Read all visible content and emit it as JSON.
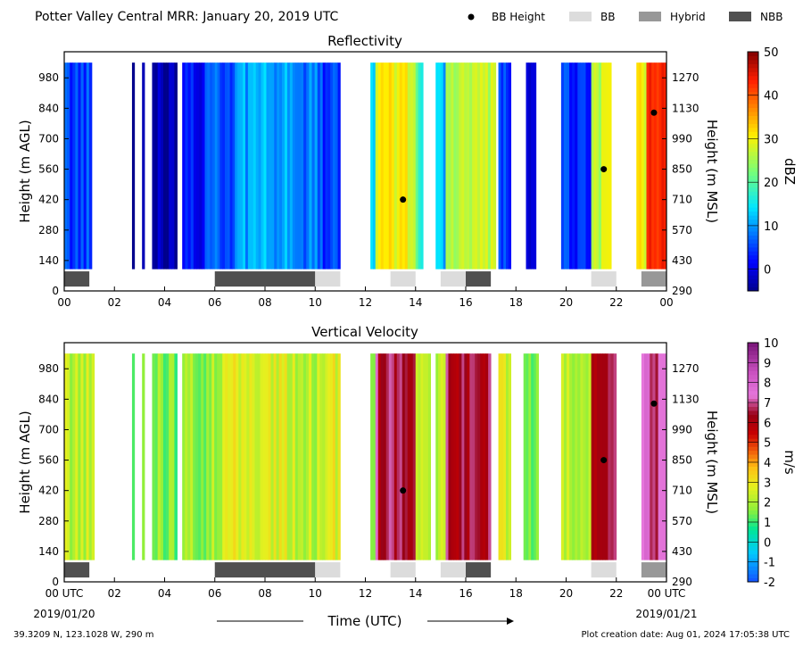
{
  "page": {
    "title": "Potter Valley Central MRR:  January 20, 2019 UTC",
    "legend": [
      {
        "label": "BB Height",
        "kind": "dot",
        "color": "#000000"
      },
      {
        "label": "BB",
        "kind": "box",
        "color": "#dcdcdc"
      },
      {
        "label": "Hybrid",
        "kind": "box",
        "color": "#989898"
      },
      {
        "label": "NBB",
        "kind": "box",
        "color": "#505050"
      }
    ],
    "xlabel": "Time (UTC)",
    "start_date": "2019/01/20",
    "end_date": "2019/01/21",
    "location": "39.3209 N, 123.1028 W, 290 m",
    "creation": "Plot creation date: Aug 01, 2024 17:05:38 UTC"
  },
  "chart_data": [
    {
      "type": "heatmap",
      "title": "Reflectivity",
      "ylabel": "Height (m AGL)",
      "y2label": "Height (m MSL)",
      "colorbar_label": "dBZ",
      "colorbar_range": [
        -5,
        50
      ],
      "colorbar_ticks": [
        "0",
        "10",
        "20",
        "30",
        "40",
        "50"
      ],
      "colorbar_tick_values": [
        0,
        10,
        20,
        30,
        40,
        50
      ],
      "colorscale": "jet",
      "x_range": [
        0,
        24
      ],
      "x_ticks": [
        "00",
        "02",
        "04",
        "06",
        "08",
        "10",
        "12",
        "14",
        "16",
        "18",
        "20",
        "22",
        "00"
      ],
      "y_range": [
        0,
        1100
      ],
      "y_ticks": [
        "0",
        "140",
        "280",
        "420",
        "560",
        "700",
        "840",
        "980"
      ],
      "y_tick_values": [
        0,
        140,
        280,
        420,
        560,
        700,
        840,
        980
      ],
      "y2_ticks": [
        "290",
        "430",
        "570",
        "710",
        "850",
        "990",
        "1130",
        "1270"
      ],
      "data_height_range": [
        100,
        1050
      ],
      "columns": [
        {
          "start": 0.0,
          "end": 1.1,
          "value": 5
        },
        {
          "start": 2.7,
          "end": 2.8,
          "value": -2
        },
        {
          "start": 3.1,
          "end": 3.2,
          "value": -3
        },
        {
          "start": 3.5,
          "end": 4.5,
          "value": -3
        },
        {
          "start": 4.7,
          "end": 5.6,
          "value": 2
        },
        {
          "start": 5.6,
          "end": 6.3,
          "value": 6
        },
        {
          "start": 6.3,
          "end": 6.8,
          "value": 6
        },
        {
          "start": 6.8,
          "end": 9.2,
          "value": 11
        },
        {
          "start": 9.2,
          "end": 10.2,
          "value": 8
        },
        {
          "start": 10.2,
          "end": 11.0,
          "value": 5
        },
        {
          "start": 12.2,
          "end": 12.4,
          "value": 12
        },
        {
          "start": 12.4,
          "end": 14.0,
          "value": 30
        },
        {
          "start": 14.0,
          "end": 14.3,
          "value": 18
        },
        {
          "start": 14.8,
          "end": 15.2,
          "value": 12
        },
        {
          "start": 15.2,
          "end": 17.2,
          "value": 26
        },
        {
          "start": 17.3,
          "end": 17.8,
          "value": 4
        },
        {
          "start": 18.4,
          "end": 18.8,
          "value": 0
        },
        {
          "start": 19.8,
          "end": 21.0,
          "value": 4
        },
        {
          "start": 21.0,
          "end": 21.8,
          "value": 27
        },
        {
          "start": 22.8,
          "end": 23.2,
          "value": 30
        },
        {
          "start": 23.2,
          "end": 24.0,
          "value": 42
        }
      ],
      "bb_height_points": [
        {
          "x": 13.5,
          "y": 420
        },
        {
          "x": 21.5,
          "y": 560
        },
        {
          "x": 23.5,
          "y": 820
        }
      ]
    },
    {
      "type": "heatmap",
      "title": "Vertical Velocity",
      "ylabel": "Height (m AGL)",
      "y2label": "Height (m MSL)",
      "colorbar_label": "m/s",
      "colorbar_range": [
        -2,
        10
      ],
      "colorbar_ticks": [
        "-2",
        "-1",
        "0",
        "1",
        "2",
        "3",
        "4",
        "5",
        "6",
        "7",
        "8",
        "9",
        "10"
      ],
      "colorbar_tick_values": [
        -2,
        -1,
        0,
        1,
        2,
        3,
        4,
        5,
        6,
        7,
        8,
        9,
        10
      ],
      "colorscale": "velocity",
      "x_range": [
        0,
        24
      ],
      "x_ticks": [
        "00 UTC",
        "02",
        "04",
        "06",
        "08",
        "10",
        "12",
        "14",
        "16",
        "18",
        "20",
        "22",
        "00 UTC"
      ],
      "y_range": [
        0,
        1100
      ],
      "y_ticks": [
        "0",
        "140",
        "280",
        "420",
        "560",
        "700",
        "840",
        "980"
      ],
      "y_tick_values": [
        0,
        140,
        280,
        420,
        560,
        700,
        840,
        980
      ],
      "y2_ticks": [
        "290",
        "430",
        "570",
        "710",
        "850",
        "990",
        "1130",
        "1270"
      ],
      "data_height_range": [
        100,
        1050
      ],
      "columns": [
        {
          "start": 0.0,
          "end": 1.2,
          "value": 2.2
        },
        {
          "start": 2.7,
          "end": 2.8,
          "value": 1.8
        },
        {
          "start": 3.1,
          "end": 3.2,
          "value": 1.6
        },
        {
          "start": 3.5,
          "end": 4.5,
          "value": 1.6
        },
        {
          "start": 4.7,
          "end": 6.3,
          "value": 1.8
        },
        {
          "start": 6.3,
          "end": 9.2,
          "value": 2.6
        },
        {
          "start": 9.2,
          "end": 10.4,
          "value": 2.2
        },
        {
          "start": 10.4,
          "end": 11.0,
          "value": 2.8
        },
        {
          "start": 12.2,
          "end": 12.4,
          "value": 1.5
        },
        {
          "start": 12.4,
          "end": 14.0,
          "value": 6.6
        },
        {
          "start": 14.0,
          "end": 14.6,
          "value": 2.0
        },
        {
          "start": 14.8,
          "end": 15.2,
          "value": 2.2
        },
        {
          "start": 15.2,
          "end": 17.0,
          "value": 6.4
        },
        {
          "start": 17.3,
          "end": 17.8,
          "value": 2.6
        },
        {
          "start": 18.3,
          "end": 18.9,
          "value": 1.5
        },
        {
          "start": 19.8,
          "end": 21.0,
          "value": 2.0
        },
        {
          "start": 21.0,
          "end": 22.0,
          "value": 6.2
        },
        {
          "start": 23.0,
          "end": 24.0,
          "value": 7.2
        }
      ],
      "bb_height_points": [
        {
          "x": 13.5,
          "y": 420
        },
        {
          "x": 21.5,
          "y": 560
        },
        {
          "x": 23.5,
          "y": 820
        }
      ]
    }
  ],
  "bb_bars": [
    {
      "start": 0.0,
      "end": 1.0,
      "type": "NBB"
    },
    {
      "start": 6.0,
      "end": 10.0,
      "type": "NBB"
    },
    {
      "start": 10.0,
      "end": 11.0,
      "type": "BB"
    },
    {
      "start": 13.0,
      "end": 14.0,
      "type": "BB"
    },
    {
      "start": 15.0,
      "end": 16.0,
      "type": "BB"
    },
    {
      "start": 16.0,
      "end": 17.0,
      "type": "NBB"
    },
    {
      "start": 21.0,
      "end": 22.0,
      "type": "BB"
    },
    {
      "start": 23.0,
      "end": 24.0,
      "type": "Hybrid"
    }
  ]
}
